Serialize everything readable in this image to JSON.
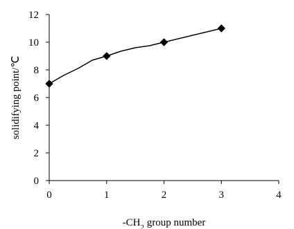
{
  "chart_data": {
    "type": "line",
    "title": "",
    "xlabel_parts": [
      "-CH",
      "2",
      " group number"
    ],
    "ylabel": "solidifying point/℃",
    "xlim": [
      0,
      4
    ],
    "ylim": [
      0,
      12
    ],
    "x_ticks": [
      0,
      1,
      2,
      3,
      4
    ],
    "y_ticks": [
      0,
      2,
      4,
      6,
      8,
      10,
      12
    ],
    "grid": false,
    "legend": "none",
    "series": [
      {
        "markers": {
          "x": [
            0,
            1,
            2,
            3
          ],
          "y": [
            7,
            9,
            10,
            11
          ]
        },
        "curve": {
          "x": [
            0,
            0.25,
            0.5,
            0.75,
            1,
            1.25,
            1.5,
            1.75,
            2,
            2.5,
            3
          ],
          "y": [
            7,
            7.6,
            8.1,
            8.7,
            9,
            9.35,
            9.6,
            9.75,
            10,
            10.5,
            11
          ]
        },
        "color": "#000000",
        "marker": "diamond"
      }
    ]
  }
}
